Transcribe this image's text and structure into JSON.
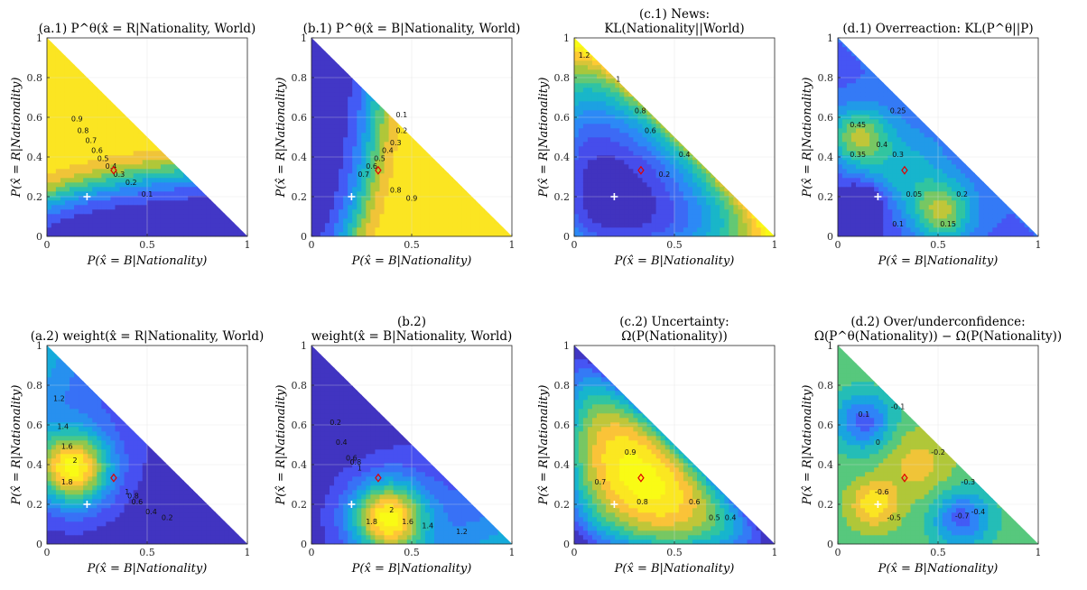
{
  "chart_data": [
    {
      "type": "heatmap",
      "id": "a1",
      "title_lines": [
        "(a.1) P^θ(x̂ = R|Nationality, World)"
      ],
      "xlabel": "P(x̂ = B|Nationality)",
      "ylabel": "P(x̂ = R|Nationality)",
      "xlim": [
        0,
        1
      ],
      "ylim": [
        0,
        1
      ],
      "xticks": [
        "0",
        "0.5",
        "1"
      ],
      "yticks": [
        "0",
        "0.2",
        "0.4",
        "0.6",
        "0.8",
        "1"
      ],
      "grid": true,
      "colormap": "parula",
      "contour_labels": [
        "0.9",
        "0.8",
        "0.7",
        "0.6",
        "0.5",
        "0.4",
        "0.3",
        "0.2",
        "0.1"
      ],
      "markers": {
        "white_plus": [
          0.2,
          0.2
        ],
        "red_diamond": [
          0.333,
          0.333
        ]
      }
    },
    {
      "type": "heatmap",
      "id": "b1",
      "title_lines": [
        "(b.1) P^θ(x̂ = B|Nationality, World)"
      ],
      "xlabel": "P(x̂ = B|Nationality)",
      "ylabel": "P(x̂ = R|Nationality)",
      "xlim": [
        0,
        1
      ],
      "ylim": [
        0,
        1
      ],
      "xticks": [
        "0",
        "0.5",
        "1"
      ],
      "yticks": [
        "0",
        "0.2",
        "0.4",
        "0.6",
        "0.8",
        "1"
      ],
      "grid": true,
      "colormap": "parula",
      "contour_labels": [
        "0.1",
        "0.2",
        "0.3",
        "0.4",
        "0.5",
        "0.6",
        "0.7",
        "0.8",
        "0.9"
      ],
      "markers": {
        "white_plus": [
          0.2,
          0.2
        ],
        "red_diamond": [
          0.333,
          0.333
        ]
      }
    },
    {
      "type": "heatmap",
      "id": "c1",
      "title_lines": [
        "(c.1) News:",
        "KL(Nationality||World)"
      ],
      "xlabel": "P(x̂ = B|Nationality)",
      "ylabel": "P(x̂ = R|Nationality)",
      "xlim": [
        0,
        1
      ],
      "ylim": [
        0,
        1
      ],
      "xticks": [
        "0",
        "0.5",
        "1"
      ],
      "yticks": [
        "0",
        "0.2",
        "0.4",
        "0.6",
        "0.8",
        "1"
      ],
      "grid": true,
      "colormap": "parula",
      "contour_labels": [
        "1.2",
        "1",
        "0.8",
        "0.6",
        "0.4",
        "0.2"
      ],
      "markers": {
        "white_plus": [
          0.2,
          0.2
        ],
        "red_diamond": [
          0.333,
          0.333
        ]
      }
    },
    {
      "type": "heatmap",
      "id": "d1",
      "title_lines": [
        "(d.1) Overreaction: KL(P^θ||P)"
      ],
      "xlabel": "P(x̂ = B|Nationality)",
      "ylabel": "P(x̂ = R|Nationality)",
      "xlim": [
        0,
        1
      ],
      "ylim": [
        0,
        1
      ],
      "xticks": [
        "0",
        "0.5",
        "1"
      ],
      "yticks": [
        "0",
        "0.2",
        "0.4",
        "0.6",
        "0.8",
        "1"
      ],
      "grid": true,
      "colormap": "parula",
      "contour_labels": [
        "0.45",
        "0.4",
        "0.35",
        "0.3",
        "0.25",
        "0.2",
        "0.15",
        "0.1",
        "0.05"
      ],
      "markers": {
        "white_plus": [
          0.2,
          0.2
        ],
        "red_diamond": [
          0.333,
          0.333
        ]
      }
    },
    {
      "type": "heatmap",
      "id": "a2",
      "title_lines": [
        "(a.2) weight(x̂ = R|Nationality, World)"
      ],
      "xlabel": "P(x̂ = B|Nationality)",
      "ylabel": "P(x̂ = R|Nationality)",
      "xlim": [
        0,
        1
      ],
      "ylim": [
        0,
        1
      ],
      "xticks": [
        "0",
        "0.5",
        "1"
      ],
      "yticks": [
        "0",
        "0.2",
        "0.4",
        "0.6",
        "0.8",
        "1"
      ],
      "grid": true,
      "colormap": "parula",
      "contour_labels": [
        "2",
        "1.8",
        "1.6",
        "1.4",
        "1.2",
        "1",
        "0.8",
        "0.6",
        "0.4",
        "0.2"
      ],
      "markers": {
        "white_plus": [
          0.2,
          0.2
        ],
        "red_diamond": [
          0.333,
          0.333
        ]
      }
    },
    {
      "type": "heatmap",
      "id": "b2",
      "title_lines": [
        "(b.2)",
        "weight(x̂ = B|Nationality, World)"
      ],
      "xlabel": "P(x̂ = B|Nationality)",
      "ylabel": "P(x̂ = R|Nationality)",
      "xlim": [
        0,
        1
      ],
      "ylim": [
        0,
        1
      ],
      "xticks": [
        "0",
        "0.5",
        "1"
      ],
      "yticks": [
        "0",
        "0.2",
        "0.4",
        "0.6",
        "0.8",
        "1"
      ],
      "grid": true,
      "colormap": "parula",
      "contour_labels": [
        "2",
        "1.8",
        "1.6",
        "1.4",
        "1.2",
        "1",
        "0.8",
        "0.6",
        "0.4",
        "0.2"
      ],
      "markers": {
        "white_plus": [
          0.2,
          0.2
        ],
        "red_diamond": [
          0.333,
          0.333
        ]
      }
    },
    {
      "type": "heatmap",
      "id": "c2",
      "title_lines": [
        "(c.2) Uncertainty:",
        "Ω(P(Nationality))"
      ],
      "xlabel": "P(x̂ = B|Nationality)",
      "ylabel": "P(x̂ = R|Nationality)",
      "xlim": [
        0,
        1
      ],
      "ylim": [
        0,
        1
      ],
      "xticks": [
        "0",
        "0.5",
        "1"
      ],
      "yticks": [
        "0",
        "0.2",
        "0.4",
        "0.6",
        "0.8",
        "1"
      ],
      "grid": true,
      "colormap": "parula",
      "contour_labels": [
        "0.9",
        "0.8",
        "0.7",
        "0.6",
        "0.5",
        "0.4"
      ],
      "markers": {
        "white_plus": [
          0.2,
          0.2
        ],
        "red_diamond": [
          0.333,
          0.333
        ]
      }
    },
    {
      "type": "heatmap",
      "id": "d2",
      "title_lines": [
        "(d.2) Over/underconfidence:",
        "Ω(P^θ(Nationality)) − Ω(P(Nationality))"
      ],
      "xlabel": "P(x̂ = B|Nationality)",
      "ylabel": "P(x̂ = R|Nationality)",
      "xlim": [
        0,
        1
      ],
      "ylim": [
        0,
        1
      ],
      "xticks": [
        "0",
        "0.5",
        "1"
      ],
      "yticks": [
        "0",
        "0.2",
        "0.4",
        "0.6",
        "0.8",
        "1"
      ],
      "grid": true,
      "colormap": "parula",
      "contour_labels": [
        "0.1",
        "0",
        "-0.1",
        "-0.2",
        "-0.3",
        "-0.4",
        "-0.5",
        "-0.6",
        "-0.7"
      ],
      "markers": {
        "white_plus": [
          0.2,
          0.2
        ],
        "red_diamond": [
          0.333,
          0.333
        ]
      }
    }
  ]
}
